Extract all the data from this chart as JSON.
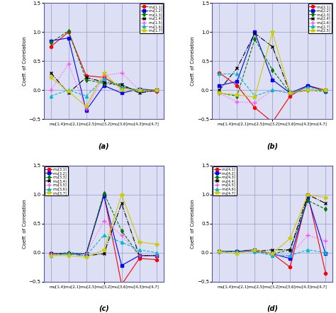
{
  "x_labels_single": "mu[1,4]mu[2,1]mu[2,5]mu[3,2]mu[3,6]mu[4,3]mu[4,7]",
  "x_positions": [
    0,
    1,
    2,
    3,
    4,
    5,
    6
  ],
  "ylim": [
    -0.5,
    1.5
  ],
  "yticks": [
    -0.5,
    0.0,
    0.5,
    1.0,
    1.5
  ],
  "ylabel": "Coeff. of Correlation",
  "subplot_labels": [
    "(a)",
    "(b)",
    "(c)",
    "(d)"
  ],
  "legend_locs": [
    "upper right",
    "upper right",
    "upper left",
    "upper left"
  ],
  "bg_color": "#dde0f5",
  "grid_color": "#9999cc",
  "spine_color": "#5555aa",
  "series_a": [
    {
      "label": "mu[1,1]",
      "color": "#ff0000",
      "marker": "o",
      "ls": "-",
      "lw": 0.8,
      "ms": 3,
      "y": [
        0.75,
        1.0,
        0.25,
        0.22,
        0.05,
        0.0,
        -0.02
      ]
    },
    {
      "label": "mu[1,2]",
      "color": "#0000ff",
      "marker": "s",
      "ls": "-",
      "lw": 0.8,
      "ms": 3,
      "y": [
        0.85,
        0.9,
        -0.35,
        0.08,
        -0.05,
        0.02,
        0.0
      ]
    },
    {
      "label": "mu[1,3]",
      "color": "#007700",
      "marker": "d",
      "ls": "--",
      "lw": 0.8,
      "ms": 3,
      "y": [
        0.82,
        1.02,
        0.18,
        0.12,
        0.08,
        -0.02,
        0.0
      ]
    },
    {
      "label": "mu[1,4]",
      "color": "#000000",
      "marker": "x",
      "ls": "-.",
      "lw": 0.8,
      "ms": 3,
      "y": [
        0.3,
        -0.05,
        0.22,
        0.14,
        0.1,
        -0.05,
        0.0
      ]
    },
    {
      "label": "mu[1,5]",
      "color": "#ff44ff",
      "marker": "+",
      "ls": ":",
      "lw": 0.8,
      "ms": 4,
      "y": [
        0.0,
        0.45,
        -0.32,
        0.25,
        0.3,
        0.0,
        0.0
      ]
    },
    {
      "label": "mu[1,6]",
      "color": "#00bbcc",
      "marker": "^",
      "ls": "--",
      "lw": 0.8,
      "ms": 3,
      "y": [
        -0.1,
        0.0,
        -0.1,
        0.2,
        0.05,
        0.0,
        0.0
      ]
    },
    {
      "label": "mu[1,7]",
      "color": "#cccc00",
      "marker": "*",
      "ls": "-",
      "lw": 0.8,
      "ms": 4,
      "y": [
        0.22,
        -0.02,
        -0.28,
        0.3,
        0.0,
        0.0,
        0.0
      ]
    }
  ],
  "series_b": [
    {
      "label": "mu[2,1]",
      "color": "#ff0000",
      "marker": "o",
      "ls": "-",
      "lw": 0.8,
      "ms": 3,
      "y": [
        0.3,
        0.08,
        -0.3,
        -0.55,
        -0.1,
        0.08,
        0.0
      ]
    },
    {
      "label": "mu[2,2]",
      "color": "#0000ff",
      "marker": "s",
      "ls": "-",
      "lw": 0.8,
      "ms": 3,
      "y": [
        0.08,
        0.15,
        1.0,
        0.18,
        -0.05,
        0.08,
        -0.02
      ]
    },
    {
      "label": "mu[2,3]",
      "color": "#007700",
      "marker": "d",
      "ls": "--",
      "lw": 0.8,
      "ms": 3,
      "y": [
        -0.05,
        -0.1,
        0.88,
        0.35,
        -0.05,
        0.0,
        -0.02
      ]
    },
    {
      "label": "mu[2,4]",
      "color": "#000000",
      "marker": "x",
      "ls": "-.",
      "lw": 0.8,
      "ms": 3,
      "y": [
        0.0,
        0.38,
        0.98,
        0.75,
        -0.05,
        0.0,
        0.0
      ]
    },
    {
      "label": "mu[2,6]",
      "color": "#ff44ff",
      "marker": "+",
      "ls": ":",
      "lw": 0.8,
      "ms": 4,
      "y": [
        -0.05,
        -0.2,
        -0.22,
        0.0,
        -0.05,
        0.0,
        0.0
      ]
    },
    {
      "label": "mu[2,7]",
      "color": "#00bbcc",
      "marker": "^",
      "ls": "--",
      "lw": 0.8,
      "ms": 3,
      "y": [
        0.28,
        0.28,
        -0.1,
        0.0,
        -0.05,
        0.05,
        0.0
      ]
    },
    {
      "label": "mu[2,5]",
      "color": "#cccc00",
      "marker": "*",
      "ls": "-",
      "lw": 0.8,
      "ms": 4,
      "y": [
        -0.05,
        -0.08,
        -0.12,
        1.0,
        -0.05,
        0.0,
        0.0
      ]
    }
  ],
  "series_c": [
    {
      "label": "mu[3,1]",
      "color": "#ff0000",
      "marker": "o",
      "ls": "-",
      "lw": 0.8,
      "ms": 3,
      "y": [
        -0.02,
        -0.02,
        -0.02,
        1.0,
        -0.55,
        -0.1,
        -0.12
      ]
    },
    {
      "label": "mu[3,2]",
      "color": "#0000ff",
      "marker": "s",
      "ls": "-",
      "lw": 0.8,
      "ms": 3,
      "y": [
        -0.02,
        -0.02,
        -0.02,
        0.98,
        -0.22,
        -0.05,
        -0.05
      ]
    },
    {
      "label": "mu[3,3]",
      "color": "#007700",
      "marker": "d",
      "ls": "--",
      "lw": 0.8,
      "ms": 3,
      "y": [
        -0.02,
        0.0,
        -0.02,
        1.02,
        0.38,
        -0.05,
        -0.05
      ]
    },
    {
      "label": "mu[3,4]",
      "color": "#000000",
      "marker": "x",
      "ls": "-.",
      "lw": 0.8,
      "ms": 3,
      "y": [
        -0.02,
        -0.02,
        -0.05,
        -0.02,
        0.85,
        -0.05,
        -0.05
      ]
    },
    {
      "label": "mu[3,5]",
      "color": "#ff44ff",
      "marker": "+",
      "ls": ":",
      "lw": 0.8,
      "ms": 4,
      "y": [
        -0.02,
        -0.02,
        -0.02,
        0.55,
        0.3,
        -0.05,
        -0.05
      ]
    },
    {
      "label": "mu[3,6]",
      "color": "#00bbcc",
      "marker": "^",
      "ls": "--",
      "lw": 0.8,
      "ms": 3,
      "y": [
        -0.05,
        -0.02,
        -0.05,
        0.3,
        0.18,
        0.05,
        0.0
      ]
    },
    {
      "label": "mu[3,7]",
      "color": "#cccc00",
      "marker": "*",
      "ls": "-",
      "lw": 0.8,
      "ms": 4,
      "y": [
        -0.05,
        -0.05,
        -0.08,
        0.05,
        1.0,
        0.18,
        0.15
      ]
    }
  ],
  "series_d": [
    {
      "label": "mu[4,1]",
      "color": "#ff0000",
      "marker": "o",
      "ls": "-",
      "lw": 0.8,
      "ms": 3,
      "y": [
        0.02,
        0.02,
        0.05,
        -0.02,
        -0.25,
        1.0,
        -0.35
      ]
    },
    {
      "label": "mu[4,2]",
      "color": "#0000ff",
      "marker": "s",
      "ls": "-",
      "lw": 0.8,
      "ms": 3,
      "y": [
        0.02,
        0.02,
        0.05,
        -0.02,
        -0.1,
        0.95,
        -0.02
      ]
    },
    {
      "label": "mu[4,3]",
      "color": "#007700",
      "marker": "d",
      "ls": "--",
      "lw": 0.8,
      "ms": 3,
      "y": [
        0.02,
        0.02,
        0.02,
        -0.02,
        0.05,
        0.9,
        0.75
      ]
    },
    {
      "label": "mu[4,4]",
      "color": "#000000",
      "marker": "x",
      "ls": "-.",
      "lw": 0.8,
      "ms": 3,
      "y": [
        0.02,
        0.02,
        0.02,
        0.05,
        0.05,
        1.0,
        0.85
      ]
    },
    {
      "label": "mu[4,5]",
      "color": "#ff44ff",
      "marker": "+",
      "ls": ":",
      "lw": 0.8,
      "ms": 4,
      "y": [
        0.02,
        0.02,
        0.02,
        -0.02,
        -0.05,
        0.3,
        0.2
      ]
    },
    {
      "label": "mu[4,6]",
      "color": "#00bbcc",
      "marker": "^",
      "ls": "--",
      "lw": 0.8,
      "ms": 3,
      "y": [
        0.02,
        0.02,
        0.02,
        -0.05,
        -0.05,
        0.05,
        0.0
      ]
    },
    {
      "label": "mu[4,7]",
      "color": "#cccc00",
      "marker": "*",
      "ls": "-",
      "lw": 0.8,
      "ms": 4,
      "y": [
        0.02,
        -0.02,
        0.05,
        -0.02,
        0.25,
        1.0,
        0.95
      ]
    }
  ]
}
